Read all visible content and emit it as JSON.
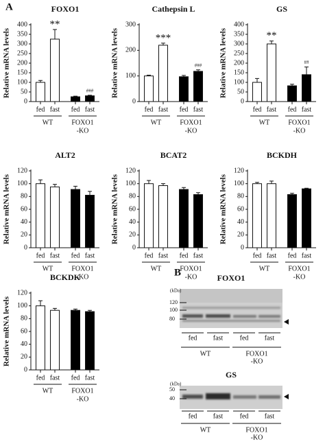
{
  "panel_labels": [
    "A",
    "B"
  ],
  "chart_data": [
    {
      "type": "bar",
      "title": "FOXO1",
      "y_label": "Relative mRNA levels",
      "categories": [
        "fed",
        "fast",
        "fed",
        "fast"
      ],
      "groups": [
        [
          "WT"
        ],
        [
          "FOXO1",
          "-KO"
        ]
      ],
      "values": [
        100,
        325,
        25,
        30
      ],
      "errors": [
        10,
        50,
        3,
        3
      ],
      "colors": [
        "#ffffff",
        "#ffffff",
        "#000000",
        "#000000"
      ],
      "significance": [
        null,
        "**",
        null,
        "###"
      ],
      "ylim": [
        0,
        400
      ],
      "yticks": [
        0,
        50,
        100,
        150,
        200,
        250,
        300,
        350,
        400
      ]
    },
    {
      "type": "bar",
      "title": "Cathepsin L",
      "y_label": "Relative mRNA levels",
      "categories": [
        "fed",
        "fast",
        "fed",
        "fast"
      ],
      "groups": [
        [
          "WT"
        ],
        [
          "FOXO1",
          "-KO"
        ]
      ],
      "values": [
        100,
        220,
        97,
        118
      ],
      "errors": [
        3,
        8,
        5,
        6
      ],
      "colors": [
        "#ffffff",
        "#ffffff",
        "#000000",
        "#000000"
      ],
      "significance": [
        null,
        "***",
        null,
        "###"
      ],
      "ylim": [
        0,
        300
      ],
      "yticks": [
        0,
        100,
        200,
        300
      ]
    },
    {
      "type": "bar",
      "title": "GS",
      "y_label": "Relative mRNA levels",
      "categories": [
        "fed",
        "fast",
        "fed",
        "fast"
      ],
      "groups": [
        [
          "WT"
        ],
        [
          "FOXO1",
          "-KO"
        ]
      ],
      "values": [
        100,
        300,
        82,
        140
      ],
      "errors": [
        20,
        15,
        8,
        40
      ],
      "colors": [
        "#ffffff",
        "#ffffff",
        "#000000",
        "#000000"
      ],
      "significance": [
        null,
        "**",
        null,
        "##"
      ],
      "ylim": [
        0,
        400
      ],
      "yticks": [
        0,
        50,
        100,
        150,
        200,
        250,
        300,
        350,
        400
      ]
    },
    {
      "type": "bar",
      "title": "ALT2",
      "y_label": "Relative mRNA levels",
      "categories": [
        "fed",
        "fast",
        "fed",
        "fast"
      ],
      "groups": [
        [
          "WT"
        ],
        [
          "FOXO1",
          "-KO"
        ]
      ],
      "values": [
        100,
        95,
        91,
        82
      ],
      "errors": [
        6,
        4,
        5,
        6
      ],
      "colors": [
        "#ffffff",
        "#ffffff",
        "#000000",
        "#000000"
      ],
      "ylim": [
        0,
        120
      ],
      "yticks": [
        0,
        20,
        40,
        60,
        80,
        100,
        120
      ]
    },
    {
      "type": "bar",
      "title": "BCAT2",
      "y_label": "Relative mRNA levels",
      "categories": [
        "fed",
        "fast",
        "fed",
        "fast"
      ],
      "groups": [
        [
          "WT"
        ],
        [
          "FOXO1",
          "-KO"
        ]
      ],
      "values": [
        100,
        97,
        91,
        83
      ],
      "errors": [
        5,
        3,
        3,
        3
      ],
      "colors": [
        "#ffffff",
        "#ffffff",
        "#000000",
        "#000000"
      ],
      "ylim": [
        0,
        120
      ],
      "yticks": [
        0,
        20,
        40,
        60,
        80,
        100,
        120
      ]
    },
    {
      "type": "bar",
      "title": "BCKDH",
      "y_label": "Relative mRNA levels",
      "categories": [
        "fed",
        "fast",
        "fed",
        "fast"
      ],
      "groups": [
        [
          "WT"
        ],
        [
          "FOXO1",
          "-KO"
        ]
      ],
      "values": [
        100,
        100,
        83,
        92
      ],
      "errors": [
        2,
        4,
        2,
        1
      ],
      "colors": [
        "#ffffff",
        "#ffffff",
        "#000000",
        "#000000"
      ],
      "ylim": [
        0,
        120
      ],
      "yticks": [
        0,
        20,
        40,
        60,
        80,
        100,
        120
      ]
    },
    {
      "type": "bar",
      "title": "BCKDK",
      "y_label": "Relative mRNA levels",
      "categories": [
        "fed",
        "fast",
        "fed",
        "fast"
      ],
      "groups": [
        [
          "WT"
        ],
        [
          "FOXO1",
          "-KO"
        ]
      ],
      "values": [
        100,
        93,
        93,
        91
      ],
      "errors": [
        8,
        3,
        2,
        2
      ],
      "colors": [
        "#ffffff",
        "#ffffff",
        "#000000",
        "#000000"
      ],
      "ylim": [
        0,
        120
      ],
      "yticks": [
        0,
        20,
        40,
        60,
        80,
        100,
        120
      ]
    }
  ],
  "blots": [
    {
      "title": "FOXO1",
      "unit": "(kDa)",
      "markers": [
        "120",
        "100",
        "80"
      ],
      "lanes": [
        "fed",
        "fast",
        "fed",
        "fast"
      ],
      "groups": [
        [
          "WT"
        ],
        [
          "FOXO1",
          "-KO"
        ]
      ]
    },
    {
      "title": "GS",
      "unit": "(kDa)",
      "markers": [
        "50",
        "40"
      ],
      "lanes": [
        "fed",
        "fast",
        "fed",
        "fast"
      ],
      "groups": [
        [
          "WT"
        ],
        [
          "FOXO1",
          "-KO"
        ]
      ]
    }
  ]
}
